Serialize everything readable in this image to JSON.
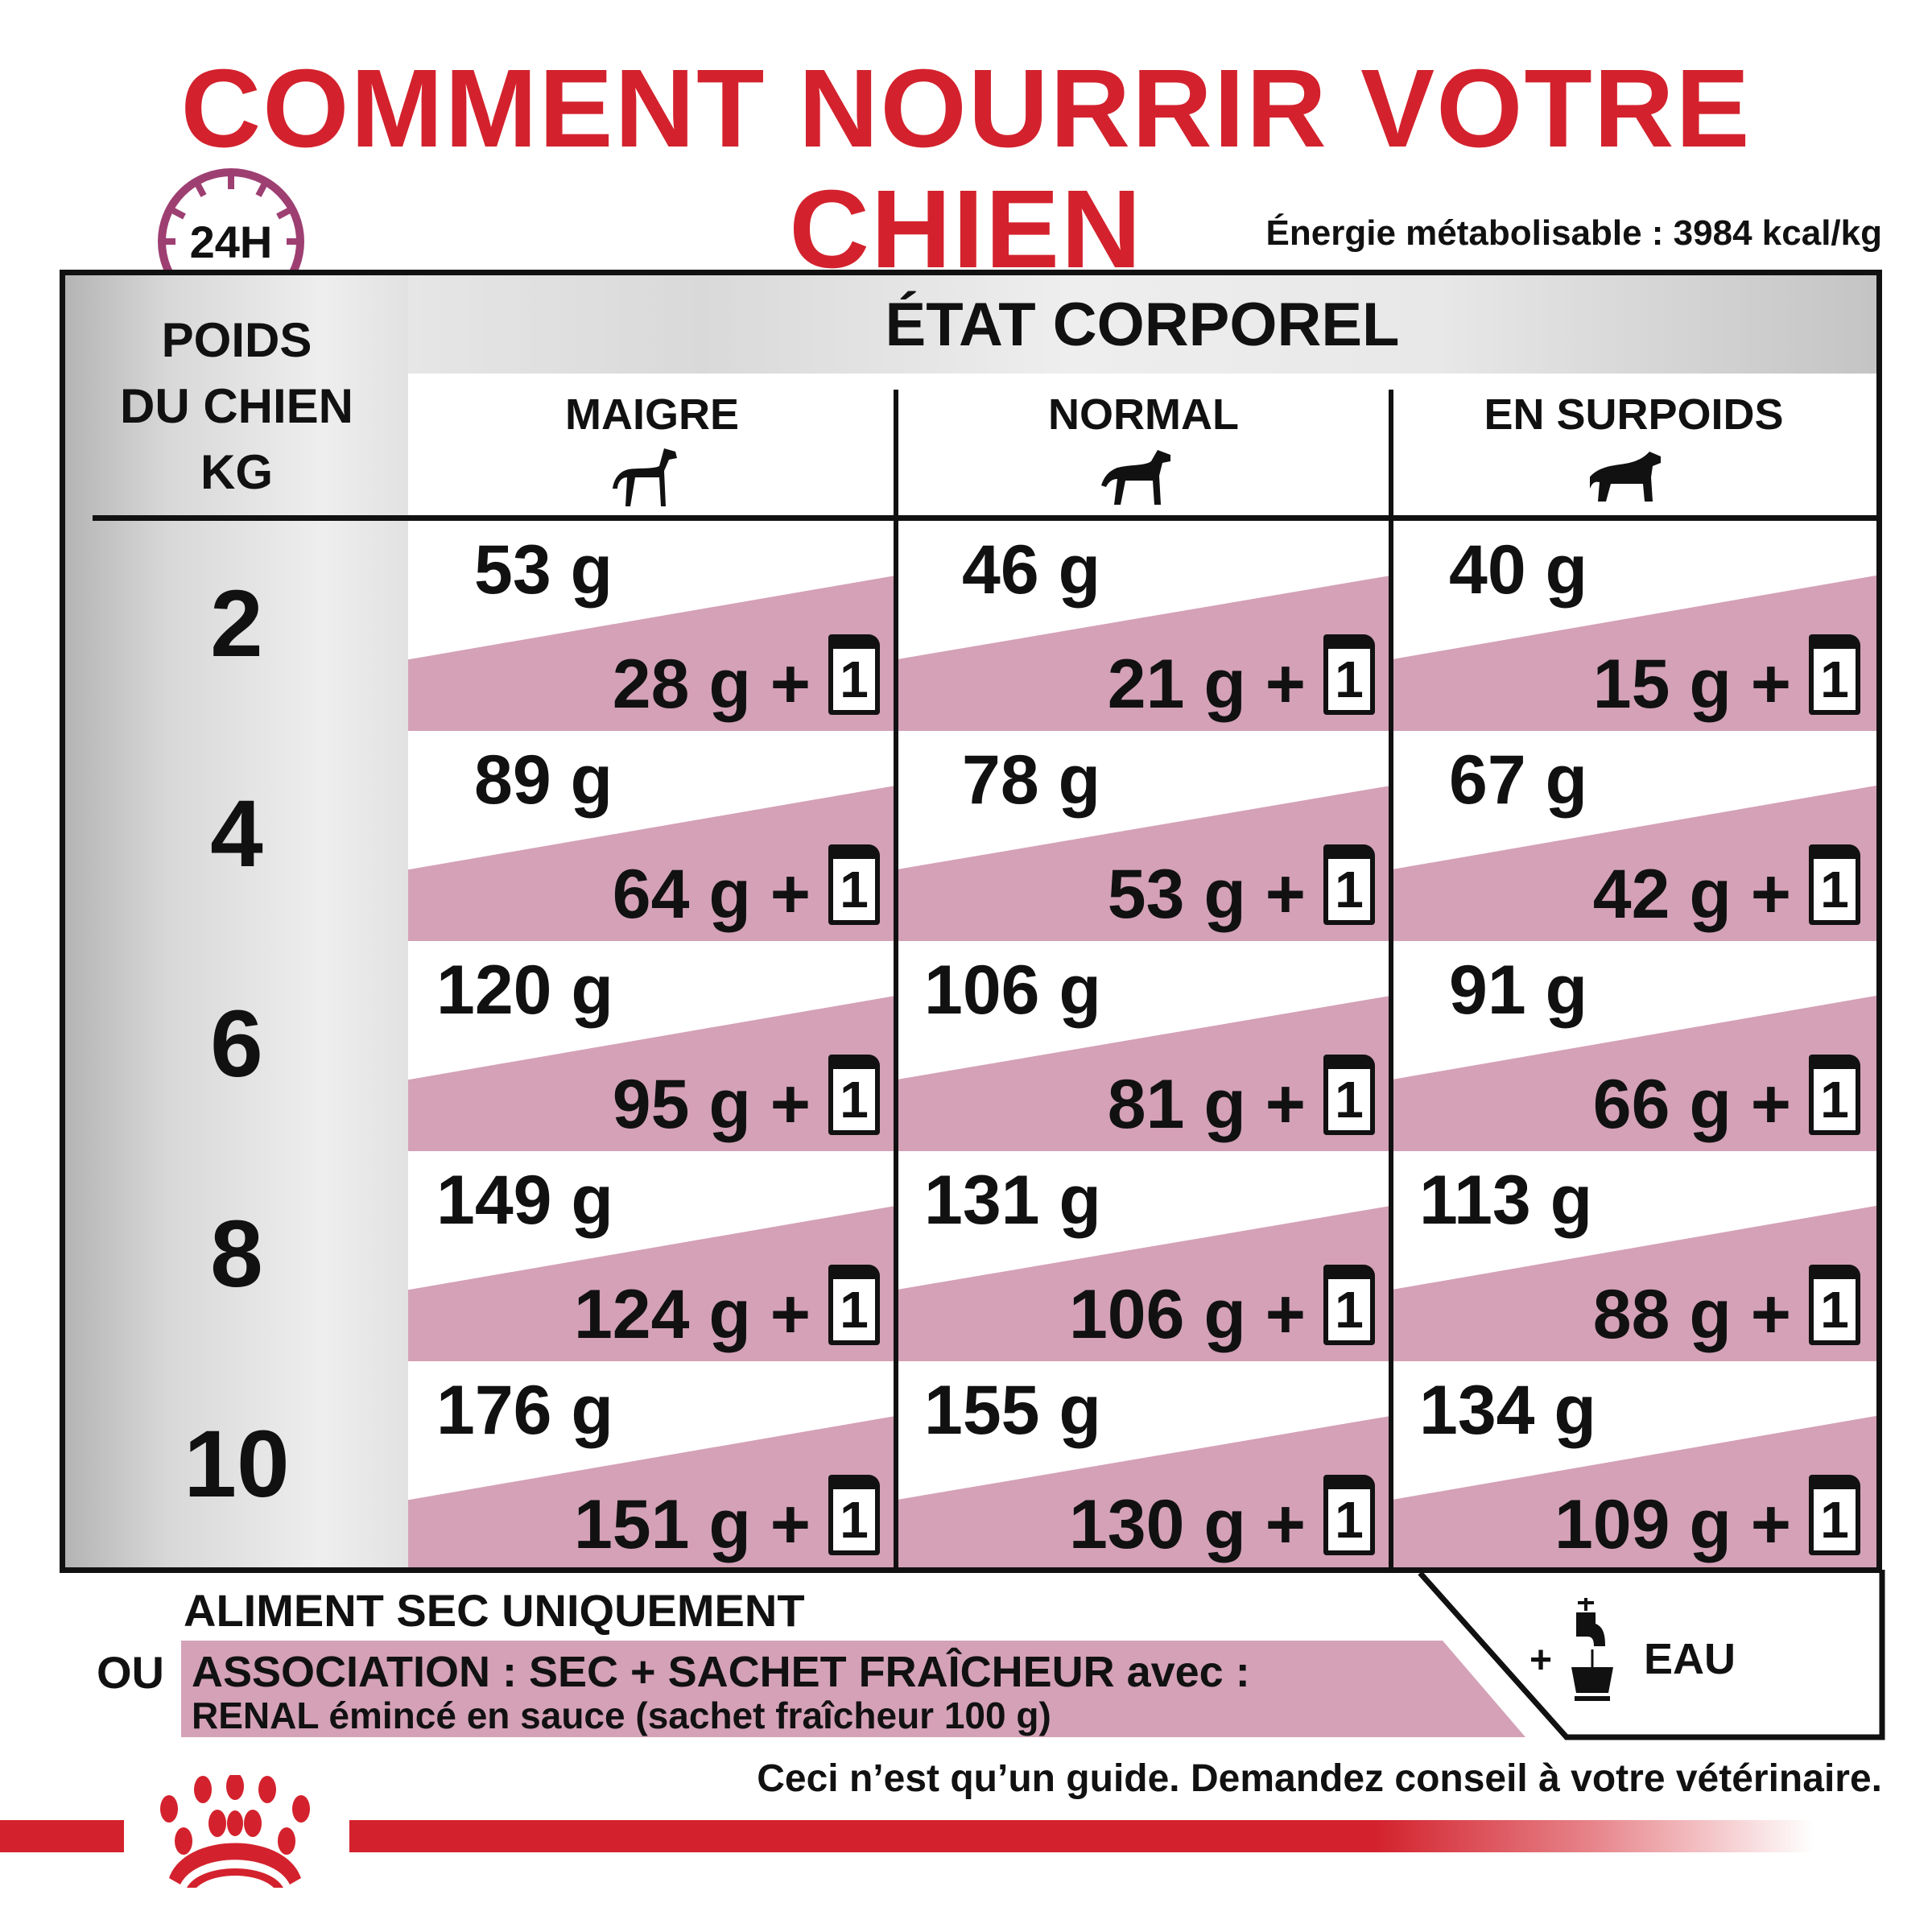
{
  "title": "COMMENT NOURRIR VOTRE CHIEN",
  "clock_label": "24H",
  "energy": "Énergie métabolisable : 3984 kcal/kg",
  "table": {
    "weight_header": [
      "POIDS",
      "DU CHIEN",
      "KG"
    ],
    "condition_header": "ÉTAT CORPOREL",
    "columns": [
      {
        "label": "MAIGRE",
        "icon": "lean-dog-icon"
      },
      {
        "label": "NORMAL",
        "icon": "normal-dog-icon"
      },
      {
        "label": "EN SURPOIDS",
        "icon": "overweight-dog-icon"
      }
    ],
    "rows": [
      {
        "weight": "2",
        "cells": [
          {
            "dry": "53 g",
            "mix": "28 g +",
            "pouch": "1"
          },
          {
            "dry": "46 g",
            "mix": "21 g +",
            "pouch": "1"
          },
          {
            "dry": "40 g",
            "mix": "15 g +",
            "pouch": "1"
          }
        ]
      },
      {
        "weight": "4",
        "cells": [
          {
            "dry": "89 g",
            "mix": "64 g +",
            "pouch": "1"
          },
          {
            "dry": "78 g",
            "mix": "53 g +",
            "pouch": "1"
          },
          {
            "dry": "67 g",
            "mix": "42 g +",
            "pouch": "1"
          }
        ]
      },
      {
        "weight": "6",
        "cells": [
          {
            "dry": "120 g",
            "mix": "95 g +",
            "pouch": "1"
          },
          {
            "dry": "106 g",
            "mix": "81 g +",
            "pouch": "1"
          },
          {
            "dry": "91 g",
            "mix": "66 g +",
            "pouch": "1"
          }
        ]
      },
      {
        "weight": "8",
        "cells": [
          {
            "dry": "149 g",
            "mix": "124 g +",
            "pouch": "1"
          },
          {
            "dry": "131 g",
            "mix": "106 g +",
            "pouch": "1"
          },
          {
            "dry": "113 g",
            "mix": "88 g +",
            "pouch": "1"
          }
        ]
      },
      {
        "weight": "10",
        "cells": [
          {
            "dry": "176 g",
            "mix": "151 g +",
            "pouch": "1"
          },
          {
            "dry": "155 g",
            "mix": "130 g +",
            "pouch": "1"
          },
          {
            "dry": "134 g",
            "mix": "109 g +",
            "pouch": "1"
          }
        ]
      }
    ]
  },
  "legend": {
    "dry_only": "ALIMENT SEC UNIQUEMENT",
    "or": "OU",
    "association": "ASSOCIATION : SEC + SACHET FRAÎCHEUR avec :",
    "wet_product": "RENAL émincé en sauce (sachet fraîcheur 100 g)",
    "water_plus": "+",
    "water": "EAU"
  },
  "disclaimer": "Ceci n’est qu’un guide. Demandez conseil à votre vétérinaire.",
  "colors": {
    "brand_red": "#d3222d",
    "pink": "#d4a1b6",
    "clock": "#9e3f72"
  }
}
